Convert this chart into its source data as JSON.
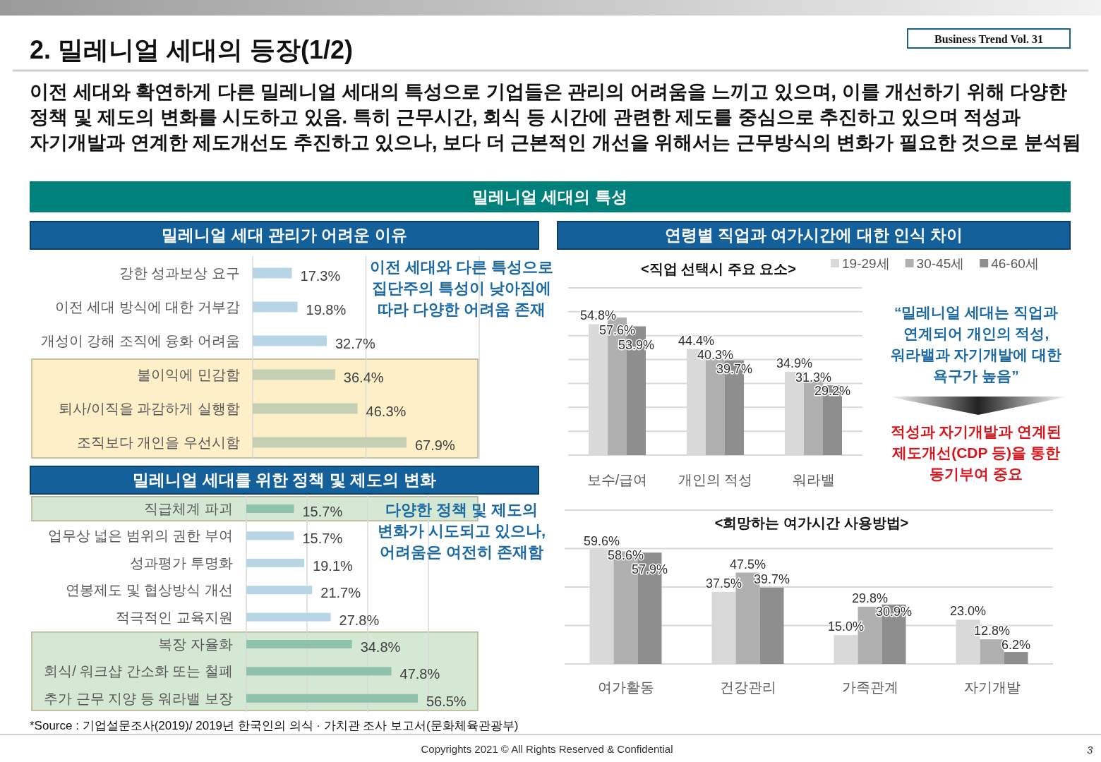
{
  "chart_data": [
    {
      "type": "other",
      "title": "2. 밀레니얼 세대의 등장(1/2)",
      "subtitle": "이전 세대와 확연하게 다른 밀레니얼 세대의 특성으로 기업들은 관리의 어려움을 느끼고 있으며, 이를 개선하기 위해 다양한 정책 및 제도의 변화를 시도하고 있음. 특히 근무시간, 회식 등 시간에 관련한 제도를 중심으로 추진하고 있으며 적성과 자기개발과 연계한 제도개선도 추진하고 있으나, 보다 더 근본적인 개선을 위해서는 근무방식의 변화가 필요한 것으로 분석됨",
      "annotations": [
        "Business Trend Vol. 31",
        "밀레니얼 세대의 특성",
        "*Source : 기업설문조사(2019)/ 2019년 한국인의 의식 · 가치관 조사 보고서(문화체육관광부)",
        "Copyrights 2021 © All Rights Reserved & Confidential",
        "3"
      ]
    },
    {
      "type": "bar",
      "orientation": "horizontal",
      "title": "밀레니얼 세대 관리가 어려운 이유",
      "categories": [
        "강한 성과보상 요구",
        "이전 세대 방식에 대한 거부감",
        "개성이 강해 조직에 융화 어려움",
        "불이익에 민감함",
        "퇴사/이직을 과감하게 실행함",
        "조직보다 개인을 우선시함"
      ],
      "values": [
        17.3,
        19.8,
        32.7,
        36.4,
        46.3,
        67.9
      ],
      "value_labels": [
        "17.3%",
        "19.8%",
        "32.7%",
        "36.4%",
        "46.3%",
        "67.9%"
      ],
      "colors": [
        "#b8d5e6",
        "#b8d5e6",
        "#b8d5e6",
        "#c4cfb3",
        "#c4cfb3",
        "#c4cfb3"
      ],
      "xlim": [
        0,
        100
      ],
      "xticks": [
        {
          "value": 0,
          "label": null
        },
        {
          "value": 50,
          "label": null
        },
        {
          "value": 100,
          "label": null
        }
      ],
      "grid": "x",
      "tick_labels": "y",
      "bands": [
        {
          "axis": "y",
          "from": "불이익에 민감함",
          "to": "조직보다 개인을 우선시함",
          "color": "#fdf0c8"
        }
      ],
      "annotations": [
        "이전 세대와 다른 특성으로 집단주의 특성이 낮아짐에 따라 다양한 어려움 존재"
      ]
    },
    {
      "type": "bar",
      "orientation": "horizontal",
      "title": "밀레니얼 세대를 위한 정책 및 제도의 변화",
      "categories": [
        "직급체계 파괴",
        "업무상 넓은 범위의 권한 부여",
        "성과평가 투명화",
        "연봉제도 및 협상방식 개선",
        "적극적인 교육지원",
        "복장 자율화",
        "회식/ 워크샵 간소화 또는 철폐",
        "추가 근무 지양 등 워라밸 보장"
      ],
      "values": [
        15.7,
        15.7,
        19.1,
        21.7,
        27.8,
        34.8,
        47.8,
        56.5
      ],
      "value_labels": [
        "15.7%",
        "15.7%",
        "19.1%",
        "21.7%",
        "27.8%",
        "34.8%",
        "47.8%",
        "56.5%"
      ],
      "colors": [
        "#8fc1ad",
        "#b8d5e6",
        "#b8d5e6",
        "#b8d5e6",
        "#b8d5e6",
        "#8fc1ad",
        "#8fc1ad",
        "#8fc1ad"
      ],
      "xlim": [
        0,
        60
      ],
      "xticks": [
        {
          "value": 0,
          "label": null
        },
        {
          "value": 20,
          "label": null
        },
        {
          "value": 40,
          "label": null
        },
        {
          "value": 60,
          "label": null
        }
      ],
      "grid": "x",
      "tick_labels": "y",
      "bands": [
        {
          "axis": "y",
          "from": "직급체계 파괴",
          "to": "직급체계 파괴",
          "color": "#d5e8d4"
        },
        {
          "axis": "y",
          "from": "복장 자율화",
          "to": "추가 근무 지양 등 워라밸 보장",
          "color": "#d5e8d4"
        }
      ],
      "annotations": [
        "다양한 정책 및 제도의 변화가 시도되고 있으나, 어려움은 여전히 존재함"
      ]
    },
    {
      "type": "bar",
      "title": "연령별 직업과 여가시간에 대한 인식 차이",
      "subtitle": "<직업 선택시 주요 요소>",
      "categories": [
        "보수/급여",
        "개인의 적성",
        "워라밸"
      ],
      "series": [
        {
          "name": "19-29세",
          "color": "#d9d9d9",
          "values": [
            54.8,
            44.4,
            34.9
          ],
          "value_labels": [
            "54.8%",
            "44.4%",
            "34.9%"
          ]
        },
        {
          "name": "30-45세",
          "color": "#b0b0b0",
          "values": [
            57.6,
            40.3,
            31.3
          ],
          "value_labels": [
            "57.6%",
            "40.3%",
            "31.3%"
          ]
        },
        {
          "name": "46-60세",
          "color": "#8e8e8e",
          "values": [
            53.9,
            39.7,
            29.2
          ],
          "value_labels": [
            "53.9%",
            "39.7%",
            "29.2%"
          ]
        }
      ],
      "ylim": [
        0,
        70
      ],
      "yticks": [
        {
          "value": 0,
          "label": null
        },
        {
          "value": 10,
          "label": null
        },
        {
          "value": 20,
          "label": null
        },
        {
          "value": 30,
          "label": null
        },
        {
          "value": 40,
          "label": null
        },
        {
          "value": 50,
          "label": null
        },
        {
          "value": 60,
          "label": null
        },
        {
          "value": 70,
          "label": null
        }
      ],
      "grid": "y",
      "tick_labels": "x",
      "legend": "top right",
      "annotations": [
        "“밀레니얼 세대는 직업과 연계되어 개인의 적성, 워라밸과 자기개발에 대한 욕구가 높음”",
        "적성과 자기개발과 연계된 제도개선(CDP 등)을 통한 동기부여 중요"
      ]
    },
    {
      "type": "bar",
      "subtitle": "<희망하는 여가시간 사용방법>",
      "categories": [
        "여가활동",
        "건강관리",
        "가족관계",
        "자기개발"
      ],
      "series": [
        {
          "color": "#d9d9d9",
          "values": [
            59.6,
            37.5,
            15.0,
            23.0
          ],
          "value_labels": [
            "59.6%",
            "37.5%",
            "15.0%",
            "23.0%"
          ]
        },
        {
          "color": "#b0b0b0",
          "values": [
            58.6,
            47.5,
            29.8,
            12.8
          ],
          "value_labels": [
            "58.6%",
            "47.5%",
            "29.8%",
            "12.8%"
          ]
        },
        {
          "color": "#8e8e8e",
          "values": [
            57.9,
            39.7,
            30.9,
            6.2
          ],
          "value_labels": [
            "57.9%",
            "39.7%",
            "30.9%",
            "6.2%"
          ]
        }
      ],
      "ylim": [
        0,
        80
      ],
      "yticks": [
        {
          "value": 0,
          "label": null
        },
        {
          "value": 20,
          "label": null
        },
        {
          "value": 40,
          "label": null
        },
        {
          "value": 60,
          "label": null
        },
        {
          "value": 80,
          "label": null
        }
      ],
      "grid": "y",
      "tick_labels": "x"
    }
  ]
}
